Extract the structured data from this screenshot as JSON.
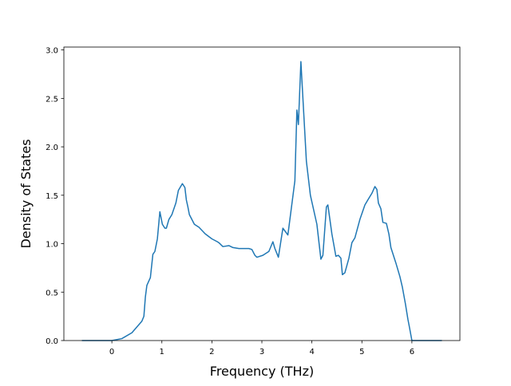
{
  "chart_data": {
    "type": "line",
    "xlabel": "Frequency (THz)",
    "ylabel": "Density of States",
    "x": [
      -0.6,
      0,
      0.2,
      0.4,
      0.5,
      0.6,
      0.64,
      0.67,
      0.7,
      0.77,
      0.82,
      0.86,
      0.91,
      0.96,
      1.01,
      1.06,
      1.09,
      1.14,
      1.2,
      1.28,
      1.33,
      1.41,
      1.46,
      1.49,
      1.52,
      1.55,
      1.65,
      1.74,
      1.87,
      2.0,
      2.11,
      2.14,
      2.22,
      2.34,
      2.42,
      2.54,
      2.74,
      2.8,
      2.86,
      2.9,
      3.02,
      3.14,
      3.22,
      3.26,
      3.33,
      3.42,
      3.52,
      3.66,
      3.7,
      3.73,
      3.78,
      3.89,
      3.97,
      4.1,
      4.18,
      4.22,
      4.29,
      4.32,
      4.4,
      4.48,
      4.53,
      4.58,
      4.61,
      4.66,
      4.74,
      4.8,
      4.86,
      4.96,
      5.06,
      5.14,
      5.2,
      5.26,
      5.3,
      5.33,
      5.38,
      5.42,
      5.49,
      5.54,
      5.58,
      5.68,
      5.76,
      5.81,
      5.87,
      5.92,
      5.95,
      6.0,
      6.6
    ],
    "series": [
      {
        "color": "#1f77b4",
        "values": [
          0,
          0,
          0.02,
          0.08,
          0.14,
          0.2,
          0.25,
          0.45,
          0.57,
          0.65,
          0.89,
          0.92,
          1.05,
          1.33,
          1.2,
          1.16,
          1.16,
          1.25,
          1.3,
          1.42,
          1.55,
          1.62,
          1.58,
          1.45,
          1.38,
          1.3,
          1.2,
          1.17,
          1.1,
          1.05,
          1.02,
          1.01,
          0.97,
          0.98,
          0.96,
          0.95,
          0.95,
          0.94,
          0.88,
          0.86,
          0.88,
          0.92,
          1.02,
          0.95,
          0.86,
          1.16,
          1.09,
          1.65,
          2.38,
          2.23,
          2.88,
          1.85,
          1.5,
          1.2,
          0.84,
          0.88,
          1.38,
          1.4,
          1.1,
          0.87,
          0.88,
          0.85,
          0.68,
          0.7,
          0.85,
          1.01,
          1.06,
          1.25,
          1.4,
          1.47,
          1.52,
          1.59,
          1.56,
          1.42,
          1.36,
          1.22,
          1.21,
          1.1,
          0.96,
          0.8,
          0.66,
          0.55,
          0.38,
          0.22,
          0.14,
          0,
          0
        ]
      }
    ],
    "xlim": [
      -0.96,
      6.96
    ],
    "ylim": [
      0,
      3.03
    ],
    "xticks": [
      0,
      1,
      2,
      3,
      4,
      5,
      6
    ],
    "yticks": [
      {
        "value": 0,
        "label": "0.0"
      },
      {
        "value": 0.5,
        "label": "0.5"
      },
      {
        "value": 1,
        "label": "1.0"
      },
      {
        "value": 1.5,
        "label": "1.5"
      },
      {
        "value": 2,
        "label": "2.0"
      },
      {
        "value": 2.5,
        "label": "2.5"
      },
      {
        "value": 3,
        "label": "3.0"
      }
    ],
    "grid": false
  }
}
